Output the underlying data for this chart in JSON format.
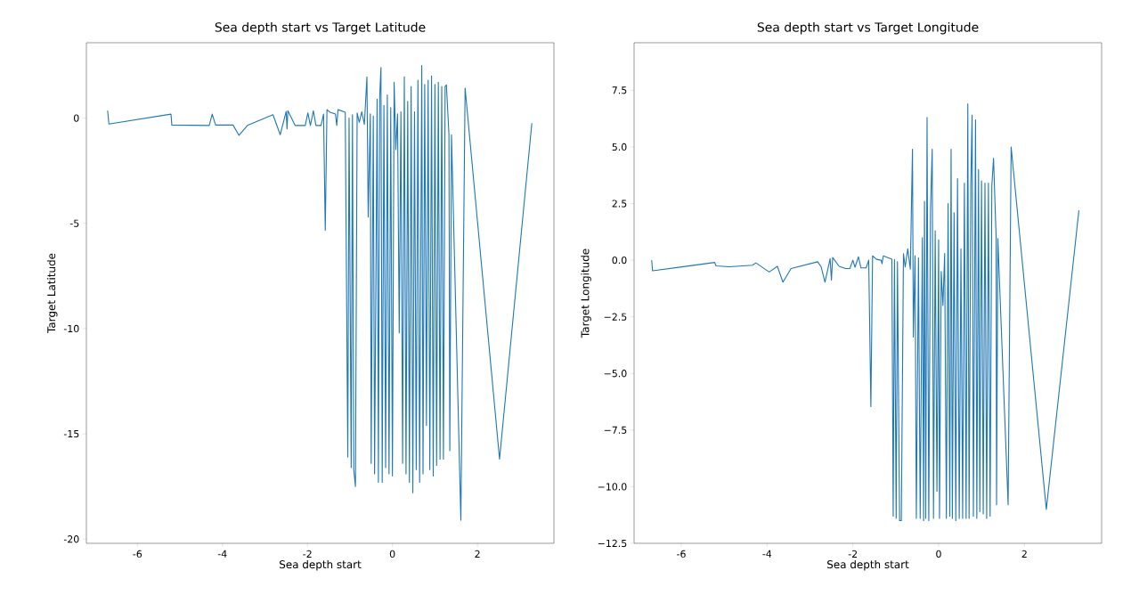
{
  "chart_data": [
    {
      "type": "line",
      "title": "Sea depth start vs Target Latitude",
      "xlabel": "Sea depth start",
      "ylabel": "Target Latitude",
      "xlim": [
        -7.2,
        3.8
      ],
      "ylim": [
        -20.2,
        3.58
      ],
      "xticks": [
        -6,
        -4,
        -2,
        0,
        2
      ],
      "yticks": [
        -20,
        -15,
        -10,
        -5,
        0
      ],
      "series": [
        {
          "color": "#1f77b4",
          "x": [
            -6.7,
            -6.67,
            -5.21,
            -5.19,
            -4.31,
            -4.24,
            -4.16,
            -3.75,
            -3.61,
            -3.41,
            -2.81,
            -2.64,
            -2.5,
            -2.48,
            -2.46,
            -2.29,
            -2.05,
            -1.99,
            -1.93,
            -1.86,
            -1.8,
            -1.68,
            -1.62,
            -1.58,
            -1.54,
            -1.47,
            -1.34,
            -1.31,
            -1.28,
            -1.11,
            -1.05,
            -1.02,
            -0.97,
            -0.94,
            -0.91,
            -0.87,
            -0.83,
            -0.78,
            -0.72,
            -0.66,
            -0.6,
            -0.57,
            -0.52,
            -0.5,
            -0.45,
            -0.42,
            -0.36,
            -0.33,
            -0.3,
            -0.27,
            -0.24,
            -0.2,
            -0.16,
            -0.12,
            -0.08,
            -0.04,
            0.0,
            0.04,
            0.08,
            0.12,
            0.16,
            0.2,
            0.24,
            0.28,
            0.32,
            0.36,
            0.4,
            0.44,
            0.48,
            0.52,
            0.56,
            0.6,
            0.64,
            0.69,
            0.72,
            0.76,
            0.8,
            0.84,
            0.88,
            0.92,
            0.96,
            1.0,
            1.04,
            1.08,
            1.12,
            1.16,
            1.2,
            1.24,
            1.27,
            1.33,
            1.35,
            1.39,
            1.61,
            1.71,
            2.52,
            3.28
          ],
          "values": [
            0.35,
            -0.28,
            0.19,
            -0.33,
            -0.35,
            0.19,
            -0.33,
            -0.33,
            -0.82,
            -0.35,
            0.16,
            -0.79,
            0.32,
            -0.51,
            0.35,
            -0.35,
            -0.35,
            0.25,
            -0.35,
            0.35,
            -0.35,
            -0.35,
            0.19,
            -5.33,
            0.4,
            0.28,
            0.19,
            -0.35,
            0.4,
            0.28,
            -16.1,
            0.0,
            -16.6,
            0.16,
            -16.7,
            -17.5,
            0.24,
            -0.2,
            0.3,
            -0.3,
            1.96,
            -4.7,
            0.2,
            -16.4,
            0.1,
            -16.9,
            0.9,
            -17.3,
            1.0,
            2.4,
            -17.3,
            0.6,
            -16.6,
            1.1,
            -16.9,
            0.5,
            -17.0,
            1.7,
            -1.5,
            0.2,
            -10.2,
            0.3,
            -16.4,
            1.96,
            -16.9,
            0.8,
            -17.3,
            1.5,
            -17.8,
            0.3,
            -16.7,
            1.8,
            -17.3,
            2.5,
            -16.9,
            1.6,
            -14.6,
            1.8,
            -16.7,
            2.0,
            -17.0,
            1.6,
            -16.5,
            1.7,
            -16.2,
            1.5,
            -16.2,
            1.5,
            1.58,
            -0.79,
            -15.8,
            -0.79,
            -19.1,
            1.42,
            -16.2,
            -0.24
          ]
        }
      ]
    },
    {
      "type": "line",
      "title": "Sea depth start vs Target Longitude",
      "xlabel": "Sea depth start",
      "ylabel": "Target Longitude",
      "xlim": [
        -7.1,
        3.8
      ],
      "ylim": [
        -12.5,
        9.6
      ],
      "xticks": [
        -6,
        -4,
        -2,
        0,
        2
      ],
      "yticks": [
        {
          "value": -12.5,
          "label": "−12.5"
        },
        {
          "value": -10,
          "label": "−10.0"
        },
        {
          "value": -7.5,
          "label": "−7.5"
        },
        {
          "value": -5,
          "label": "−5.0"
        },
        {
          "value": -2.5,
          "label": "−2.5"
        },
        {
          "value": 0,
          "label": "0.0"
        },
        {
          "value": 2.5,
          "label": "2.5"
        },
        {
          "value": 5,
          "label": "5.0"
        },
        {
          "value": 7.5,
          "label": "7.5"
        }
      ],
      "series": [
        {
          "color": "#1f77b4",
          "x": [
            -6.69,
            -6.67,
            -5.22,
            -5.19,
            -4.88,
            -4.34,
            -4.26,
            -3.95,
            -3.76,
            -3.63,
            -3.44,
            -2.82,
            -2.74,
            -2.65,
            -2.53,
            -2.5,
            -2.47,
            -2.32,
            -2.17,
            -2.07,
            -2.0,
            -1.95,
            -1.87,
            -1.81,
            -1.69,
            -1.63,
            -1.58,
            -1.54,
            -1.45,
            -1.34,
            -1.32,
            -1.29,
            -1.09,
            -1.06,
            -1.03,
            -0.99,
            -0.96,
            -0.91,
            -0.87,
            -0.82,
            -0.78,
            -0.72,
            -0.66,
            -0.61,
            -0.59,
            -0.55,
            -0.52,
            -0.47,
            -0.43,
            -0.38,
            -0.35,
            -0.33,
            -0.3,
            -0.27,
            -0.23,
            -0.19,
            -0.15,
            -0.12,
            -0.08,
            -0.04,
            0.0,
            0.02,
            0.06,
            0.1,
            0.14,
            0.18,
            0.22,
            0.26,
            0.29,
            0.32,
            0.36,
            0.4,
            0.44,
            0.48,
            0.52,
            0.56,
            0.6,
            0.64,
            0.68,
            0.71,
            0.75,
            0.78,
            0.81,
            0.86,
            0.89,
            0.93,
            0.96,
            1.0,
            1.04,
            1.08,
            1.12,
            1.16,
            1.2,
            1.24,
            1.28,
            1.34,
            1.35,
            1.38,
            1.62,
            1.69,
            2.51,
            3.27
          ],
          "values": [
            0.0,
            -0.47,
            -0.1,
            -0.25,
            -0.29,
            -0.22,
            -0.12,
            -0.52,
            -0.27,
            -0.97,
            -0.37,
            -0.07,
            -0.29,
            -0.97,
            0.07,
            -0.88,
            0.12,
            -0.27,
            -0.37,
            -0.37,
            0.0,
            -0.31,
            0.15,
            -0.34,
            -0.34,
            0.0,
            -6.46,
            0.19,
            0.04,
            0.0,
            -0.16,
            0.19,
            0.04,
            -11.3,
            0.03,
            -11.4,
            -0.07,
            -11.5,
            -11.5,
            0.29,
            -0.3,
            0.5,
            -0.4,
            4.9,
            -3.4,
            0.2,
            -11.4,
            0.1,
            -11.4,
            1.0,
            -11.5,
            2.6,
            -11.4,
            6.3,
            -11.5,
            2.2,
            4.9,
            -11.4,
            1.3,
            -10.2,
            0.9,
            -11.4,
            -0.5,
            -2.0,
            0.3,
            -11.4,
            2.5,
            -11.3,
            4.9,
            -11.4,
            2.1,
            -11.5,
            3.6,
            -11.4,
            0.5,
            -11.4,
            3.4,
            -11.4,
            6.9,
            -11.4,
            3.3,
            6.4,
            -11.3,
            6.2,
            -11.4,
            4.0,
            -11.1,
            3.5,
            -11.2,
            3.4,
            -11.4,
            3.4,
            -11.3,
            3.3,
            4.5,
            1.0,
            -10.8,
            0.96,
            -10.8,
            5.0,
            -11.0,
            2.2
          ]
        }
      ]
    }
  ]
}
